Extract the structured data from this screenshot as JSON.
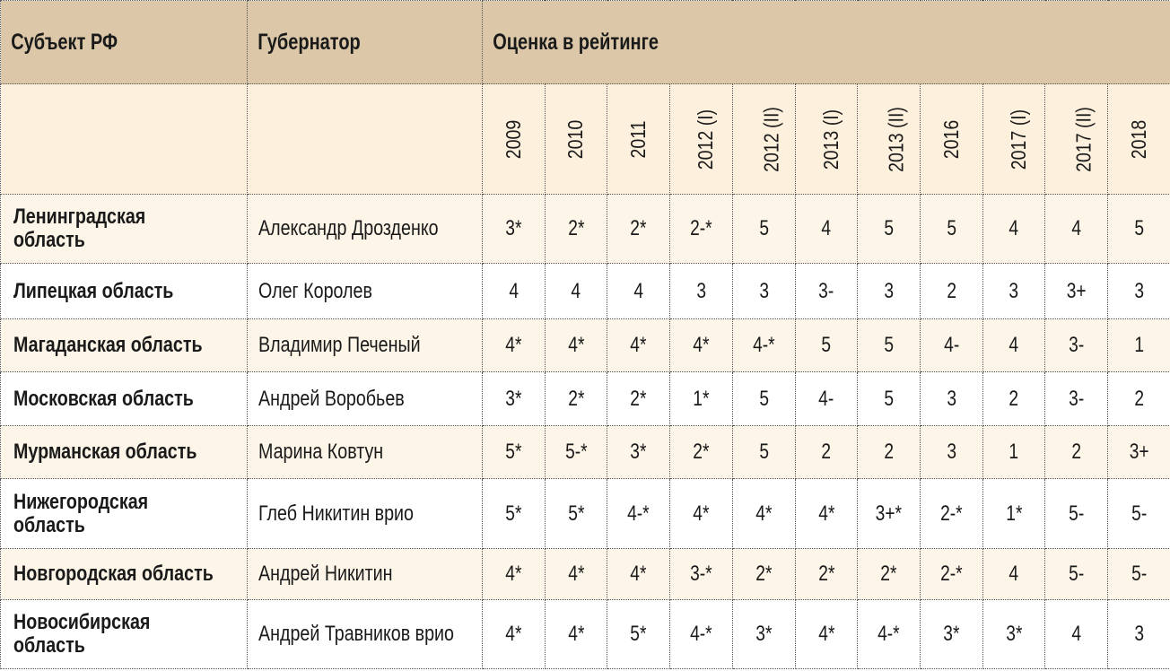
{
  "header": {
    "region": "Субъект РФ",
    "governor": "Губернатор",
    "rating": "Оценка в рейтинге"
  },
  "colors": {
    "header_bg": "#dcc8a8",
    "subheader_bg": "#fdf0dc",
    "alt_row_bg": "#fdf6e8"
  },
  "periods": [
    "2009",
    "2010",
    "2011",
    "2012 (I)",
    "2012 (II)",
    "2013 (I)",
    "2013 (II)",
    "2016",
    "2017 (I)",
    "2017 (II)",
    "2018"
  ],
  "rows": [
    {
      "region": [
        "Ленинградская",
        "область"
      ],
      "governor": "Александр Дрозденко",
      "scores": [
        "3*",
        "2*",
        "2*",
        "2-*",
        "5",
        "4",
        "5",
        "5",
        "4",
        "4",
        "5"
      ]
    },
    {
      "region": [
        "Липецкая область"
      ],
      "governor": "Олег Королев",
      "scores": [
        "4",
        "4",
        "4",
        "3",
        "3",
        "3-",
        "3",
        "2",
        "3",
        "3+",
        "3"
      ]
    },
    {
      "region": [
        "Магаданская область"
      ],
      "governor": "Владимир Печеный",
      "scores": [
        "4*",
        "4*",
        "4*",
        "4*",
        "4-*",
        "5",
        "5",
        "4-",
        "4",
        "3-",
        "1"
      ]
    },
    {
      "region": [
        "Московская область"
      ],
      "governor": "Андрей Воробьев",
      "scores": [
        "3*",
        "2*",
        "2*",
        "1*",
        "5",
        "4-",
        "5",
        "3",
        "2",
        "3-",
        "2"
      ]
    },
    {
      "region": [
        "Мурманская область"
      ],
      "governor": "Марина Ковтун",
      "scores": [
        "5*",
        "5-*",
        "3*",
        "2*",
        "5",
        "2",
        "2",
        "3",
        "1",
        "2",
        "3+"
      ]
    },
    {
      "region": [
        "Нижегородская",
        "область"
      ],
      "governor": "Глеб Никитин врио",
      "scores": [
        "5*",
        "5*",
        "4-*",
        "4*",
        "4*",
        "4*",
        "3+*",
        "2-*",
        "1*",
        "5-",
        "5-"
      ]
    },
    {
      "region": [
        "Новгородская область"
      ],
      "governor": "Андрей Никитин",
      "scores": [
        "4*",
        "4*",
        "4*",
        "3-*",
        "2*",
        "2*",
        "2*",
        "2-*",
        "4",
        "5-",
        "5-"
      ]
    },
    {
      "region": [
        "Новосибирская",
        "область"
      ],
      "governor": "Андрей Травников врио",
      "scores": [
        "4*",
        "4*",
        "5*",
        "4-*",
        "3*",
        "4*",
        "4-*",
        "3*",
        "3*",
        "4",
        "3"
      ]
    }
  ]
}
